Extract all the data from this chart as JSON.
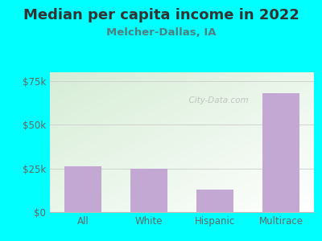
{
  "title": "Median per capita income in 2022",
  "subtitle": "Melcher-Dallas, IA",
  "categories": [
    "All",
    "White",
    "Hispanic",
    "Multirace"
  ],
  "values": [
    26000,
    25000,
    13000,
    68000
  ],
  "bar_color": "#c4a8d4",
  "background_color": "#00FFFF",
  "chart_bg_color_tl": "#d4ecd4",
  "chart_bg_color_br": "#f8fff8",
  "title_color": "#333333",
  "subtitle_color": "#4d8080",
  "tick_label_color": "#666666",
  "grid_color": "#cccccc",
  "ylim": [
    0,
    80000
  ],
  "yticks": [
    0,
    25000,
    50000,
    75000
  ],
  "ytick_labels": [
    "$0",
    "$25k",
    "$50k",
    "$75k"
  ],
  "title_fontsize": 13,
  "subtitle_fontsize": 9.5,
  "tick_fontsize": 8.5,
  "watermark": "  City-Data.com"
}
